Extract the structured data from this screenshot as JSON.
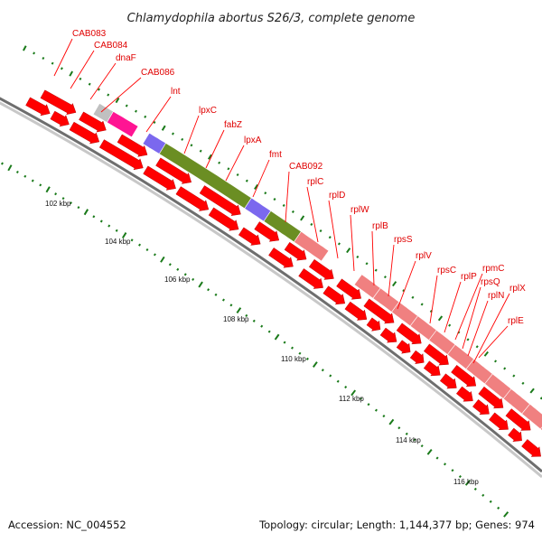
{
  "title": "Chlamydophila abortus S26/3, complete genome",
  "accession": "Accession: NC_004552",
  "topology": "Topology: circular; Length: 1,144,377 bp; Genes: 974",
  "tick_labels": [
    "102 kbp",
    "104 kbp",
    "106 kbp",
    "108 kbp",
    "110 kbp",
    "112 kbp",
    "114 kbp",
    "116 kbp"
  ],
  "gene_labels": [
    "CAB083",
    "CAB084",
    "dnaF",
    "CAB086",
    "lnt",
    "lpxC",
    "fabZ",
    "lpxA",
    "fmt",
    "CAB092",
    "rplC",
    "rplD",
    "rplW",
    "rplB",
    "rpsS",
    "rplV",
    "rpsC",
    "rplP",
    "rpmC",
    "rpsQ",
    "rplN",
    "rplX",
    "rplE"
  ],
  "colors": {
    "cds": "#ff0000",
    "ribosomal": "#f08080",
    "olive": "#6b8e23",
    "slate": "#7b68ee",
    "magenta": "#ff1493",
    "grey": "#c0c0c0",
    "tick": "#1a7a1a",
    "backbone": "#999999"
  }
}
